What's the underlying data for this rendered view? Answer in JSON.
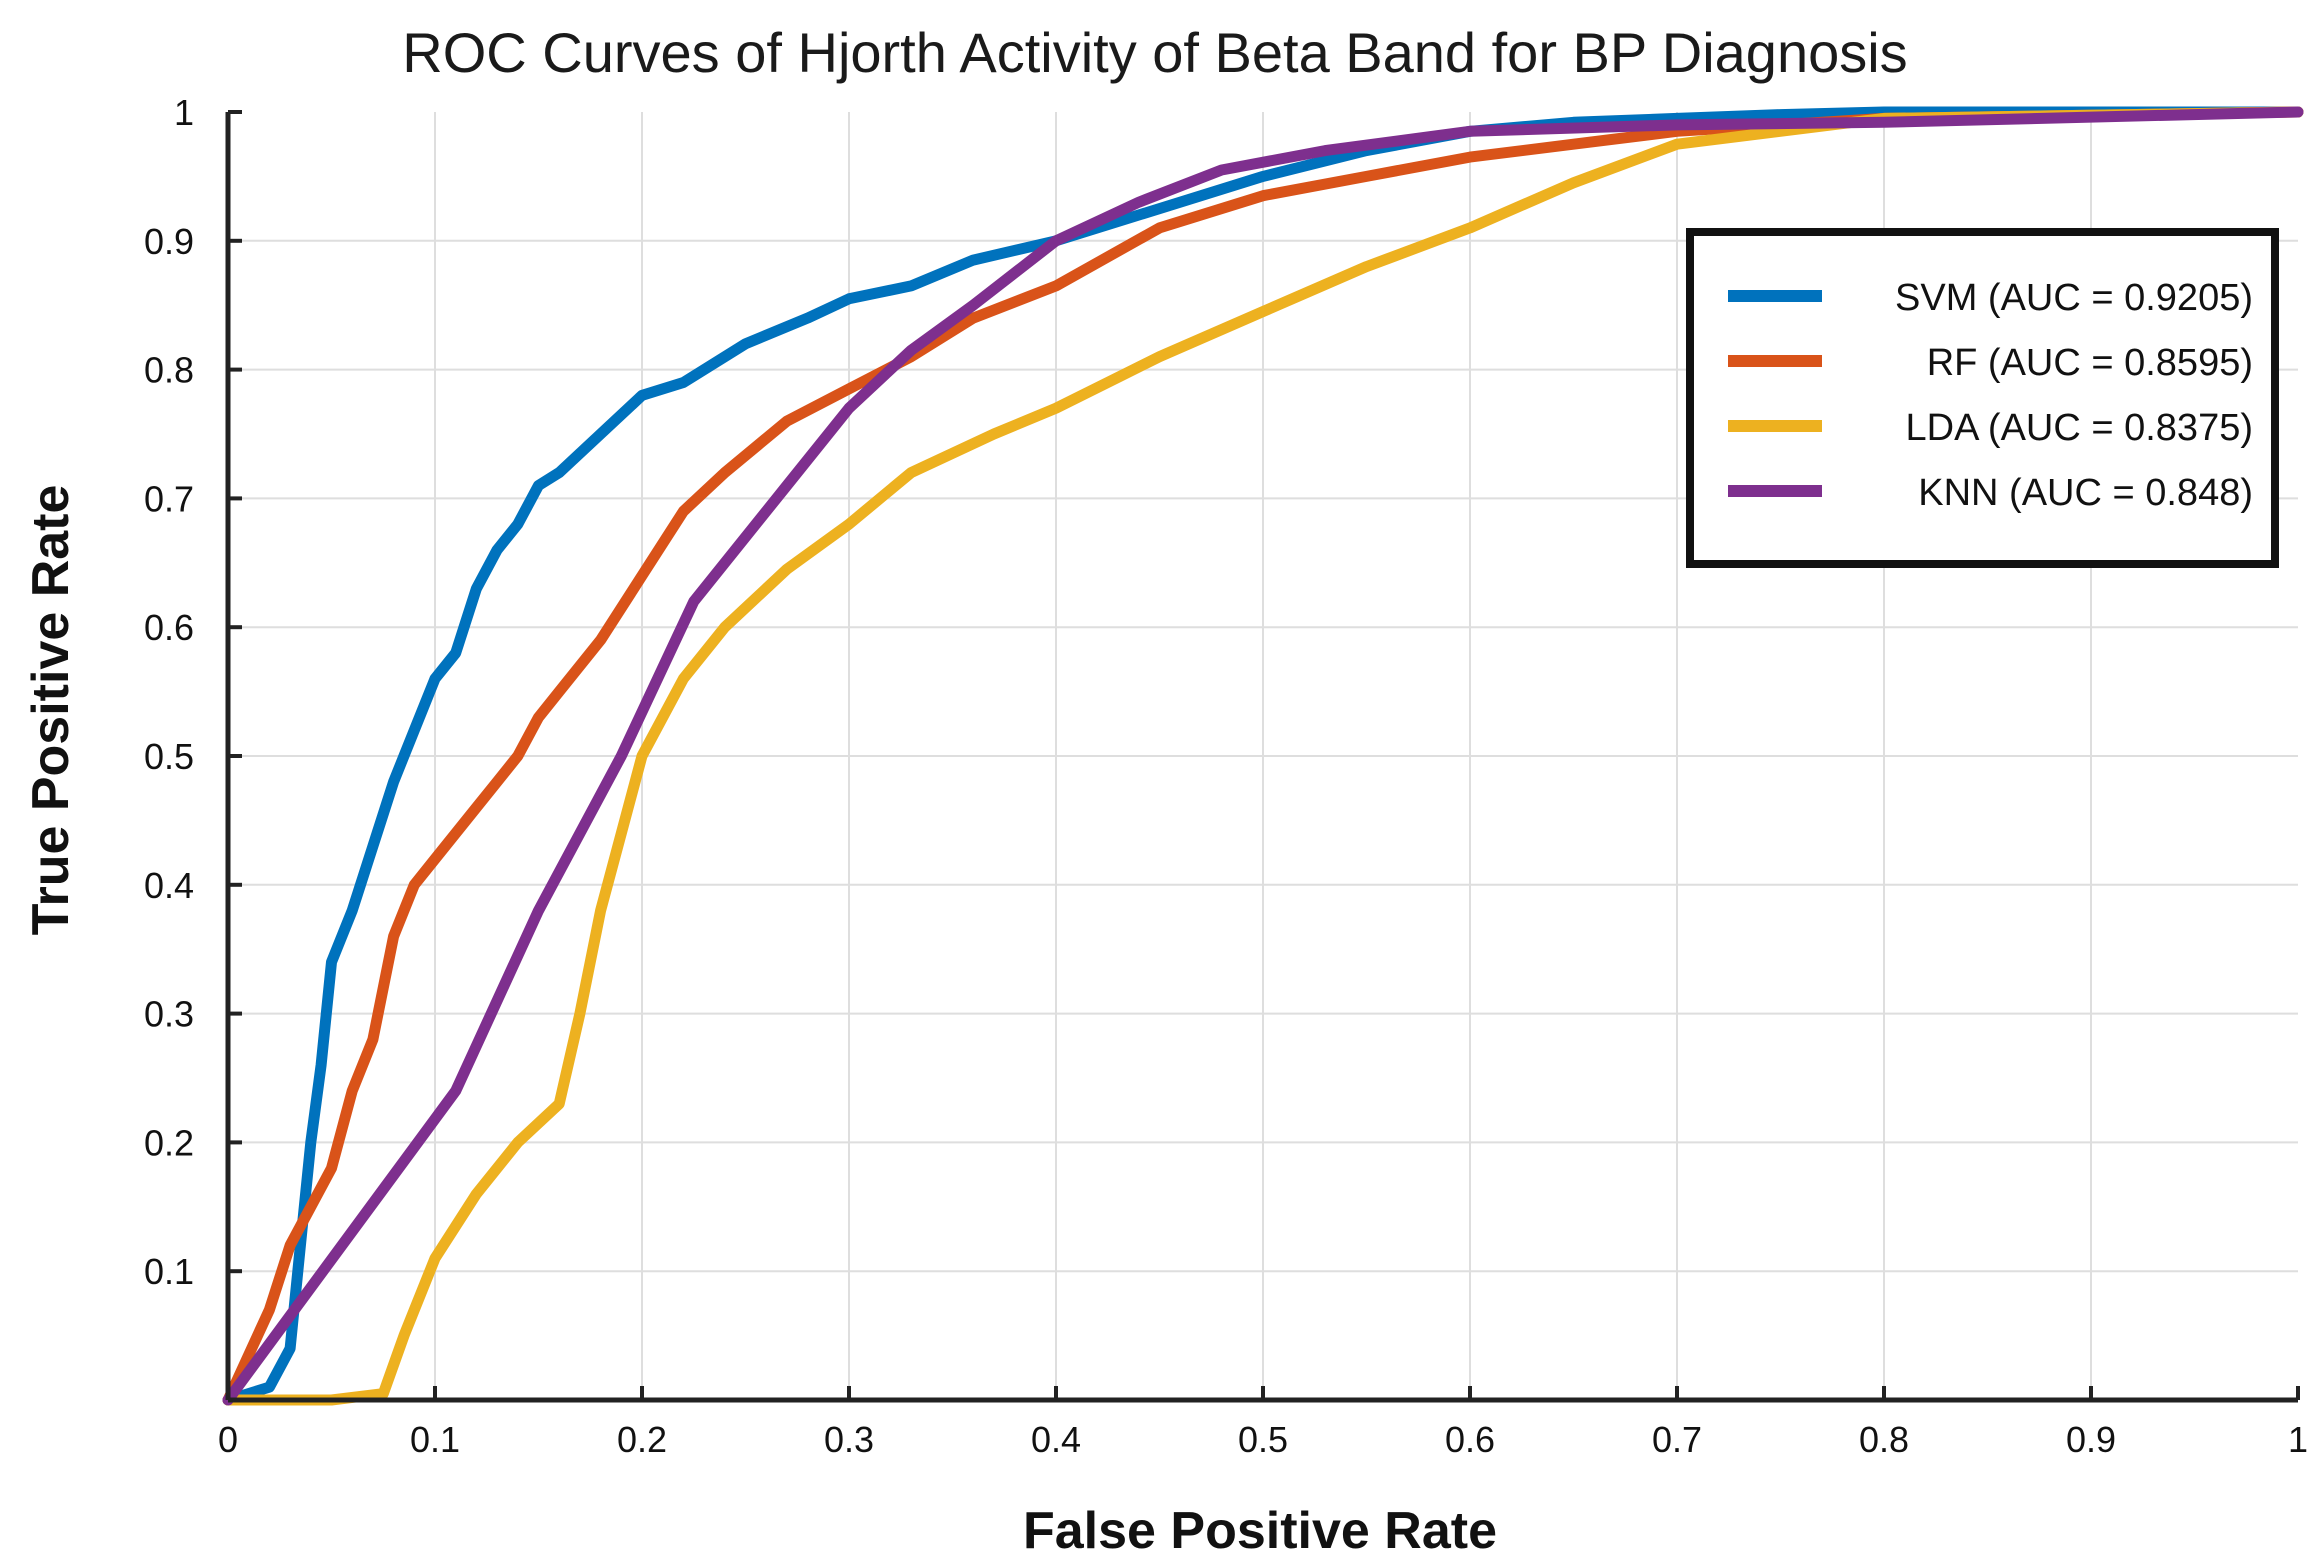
{
  "chart_data": {
    "type": "line",
    "title": "ROC Curves of Hjorth Activity of Beta Band for BP Diagnosis",
    "xlabel": "False Positive Rate",
    "ylabel": "True Positive Rate",
    "xlim": [
      0,
      1
    ],
    "ylim": [
      0,
      1
    ],
    "xticks": [
      "0",
      "0.1",
      "0.2",
      "0.3",
      "0.4",
      "0.5",
      "0.6",
      "0.7",
      "0.8",
      "0.9",
      "1"
    ],
    "yticks": [
      "0.1",
      "0.2",
      "0.3",
      "0.4",
      "0.5",
      "0.6",
      "0.7",
      "0.8",
      "0.9",
      "1"
    ],
    "grid": true,
    "legend_position": "top-right",
    "series": [
      {
        "name": "SVM (AUC = 0.9205)",
        "color": "#0072BD",
        "x": [
          0,
          0.02,
          0.03,
          0.035,
          0.04,
          0.045,
          0.05,
          0.06,
          0.07,
          0.08,
          0.09,
          0.1,
          0.11,
          0.12,
          0.13,
          0.14,
          0.15,
          0.16,
          0.18,
          0.2,
          0.22,
          0.25,
          0.28,
          0.3,
          0.33,
          0.36,
          0.4,
          0.45,
          0.5,
          0.55,
          0.6,
          0.65,
          0.7,
          0.75,
          0.8,
          1.0
        ],
        "y": [
          0,
          0.01,
          0.04,
          0.12,
          0.2,
          0.26,
          0.34,
          0.38,
          0.43,
          0.48,
          0.52,
          0.56,
          0.58,
          0.63,
          0.66,
          0.68,
          0.71,
          0.72,
          0.75,
          0.78,
          0.79,
          0.82,
          0.84,
          0.855,
          0.865,
          0.885,
          0.9,
          0.925,
          0.95,
          0.97,
          0.985,
          0.992,
          0.995,
          0.998,
          1.0,
          1.0
        ]
      },
      {
        "name": "RF (AUC = 0.8595)",
        "color": "#D95319",
        "x": [
          0,
          0.02,
          0.03,
          0.04,
          0.05,
          0.06,
          0.07,
          0.08,
          0.09,
          0.1,
          0.12,
          0.13,
          0.14,
          0.15,
          0.16,
          0.18,
          0.2,
          0.22,
          0.24,
          0.27,
          0.3,
          0.33,
          0.36,
          0.4,
          0.45,
          0.5,
          0.55,
          0.6,
          0.65,
          0.7,
          0.8,
          1.0
        ],
        "y": [
          0,
          0.07,
          0.12,
          0.15,
          0.18,
          0.24,
          0.28,
          0.36,
          0.4,
          0.42,
          0.46,
          0.48,
          0.5,
          0.53,
          0.55,
          0.59,
          0.64,
          0.69,
          0.72,
          0.76,
          0.785,
          0.81,
          0.84,
          0.865,
          0.91,
          0.935,
          0.95,
          0.965,
          0.975,
          0.985,
          0.995,
          1.0
        ]
      },
      {
        "name": "LDA (AUC = 0.8375)",
        "color": "#EDB120",
        "x": [
          0,
          0.05,
          0.075,
          0.085,
          0.1,
          0.12,
          0.14,
          0.16,
          0.17,
          0.18,
          0.19,
          0.2,
          0.22,
          0.24,
          0.27,
          0.3,
          0.33,
          0.37,
          0.4,
          0.45,
          0.5,
          0.55,
          0.6,
          0.65,
          0.7,
          0.8,
          1.0
        ],
        "y": [
          0,
          0,
          0.005,
          0.05,
          0.11,
          0.16,
          0.2,
          0.23,
          0.3,
          0.38,
          0.44,
          0.5,
          0.56,
          0.6,
          0.645,
          0.68,
          0.72,
          0.75,
          0.77,
          0.81,
          0.845,
          0.88,
          0.91,
          0.945,
          0.975,
          0.995,
          1.0
        ]
      },
      {
        "name": "KNN (AUC = 0.848)",
        "color": "#7E2F8E",
        "x": [
          0,
          0.11,
          0.15,
          0.19,
          0.225,
          0.27,
          0.3,
          0.33,
          0.36,
          0.4,
          0.44,
          0.48,
          0.53,
          0.6,
          0.7,
          0.8,
          1.0
        ],
        "y": [
          0,
          0.24,
          0.38,
          0.5,
          0.62,
          0.71,
          0.77,
          0.815,
          0.85,
          0.9,
          0.93,
          0.955,
          0.97,
          0.985,
          0.99,
          0.992,
          1.0
        ]
      }
    ]
  }
}
